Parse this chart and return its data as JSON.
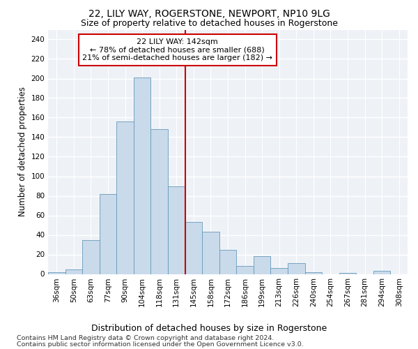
{
  "title": "22, LILY WAY, ROGERSTONE, NEWPORT, NP10 9LG",
  "subtitle": "Size of property relative to detached houses in Rogerstone",
  "xlabel": "Distribution of detached houses by size in Rogerstone",
  "ylabel": "Number of detached properties",
  "bar_labels": [
    "36sqm",
    "50sqm",
    "63sqm",
    "77sqm",
    "90sqm",
    "104sqm",
    "118sqm",
    "131sqm",
    "145sqm",
    "158sqm",
    "172sqm",
    "186sqm",
    "199sqm",
    "213sqm",
    "226sqm",
    "240sqm",
    "254sqm",
    "267sqm",
    "281sqm",
    "294sqm",
    "308sqm"
  ],
  "bar_heights": [
    2,
    5,
    35,
    82,
    156,
    201,
    148,
    90,
    53,
    43,
    25,
    8,
    18,
    6,
    11,
    2,
    0,
    1,
    0,
    3,
    0
  ],
  "bar_color": "#c9daea",
  "bar_edge_color": "#6699bb",
  "vline_x_index": 7.5,
  "vline_color": "#cc0000",
  "annotation_text": "22 LILY WAY: 142sqm\n← 78% of detached houses are smaller (688)\n21% of semi-detached houses are larger (182) →",
  "annotation_box_color": "#ffffff",
  "annotation_box_edge": "#cc0000",
  "ylim": [
    0,
    250
  ],
  "yticks": [
    0,
    20,
    40,
    60,
    80,
    100,
    120,
    140,
    160,
    180,
    200,
    220,
    240
  ],
  "footer_line1": "Contains HM Land Registry data © Crown copyright and database right 2024.",
  "footer_line2": "Contains public sector information licensed under the Open Government Licence v3.0.",
  "bg_color": "#eef2f7",
  "grid_color": "#ffffff",
  "title_fontsize": 10,
  "subtitle_fontsize": 9,
  "ylabel_fontsize": 8.5,
  "xlabel_fontsize": 9,
  "tick_fontsize": 7.5,
  "annotation_fontsize": 8,
  "footer_fontsize": 6.8
}
